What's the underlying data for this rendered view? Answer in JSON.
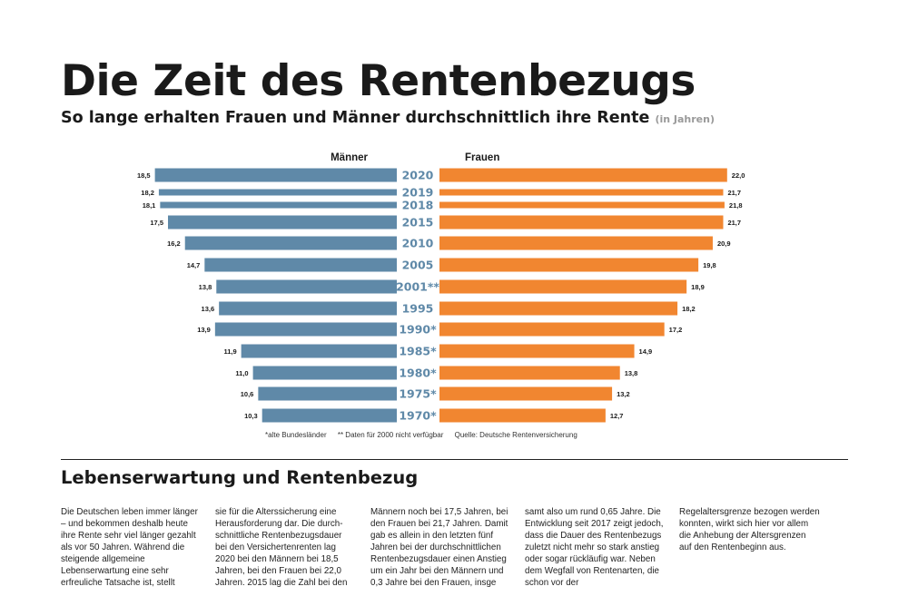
{
  "title": "Die Zeit des Rentenbezugs",
  "subtitle": "So lange erhalten Frauen und Männer durchschnittlich ihre Rente",
  "subtitle_unit": "(in Jahren)",
  "colors": {
    "men": "#5f89a8",
    "women": "#f18630",
    "year_label": "#5f89a8"
  },
  "chart_data": {
    "type": "bar",
    "orientation": "horizontal-butterfly",
    "categories": [
      "2020",
      "2019",
      "2018",
      "2015",
      "2010",
      "2005",
      "2001**",
      "1995",
      "1990*",
      "1985*",
      "1980*",
      "1975*",
      "1970*"
    ],
    "series": [
      {
        "name": "Männer",
        "values": [
          18.5,
          18.2,
          18.1,
          17.5,
          16.2,
          14.7,
          13.8,
          13.6,
          13.9,
          11.9,
          11.0,
          10.6,
          10.3
        ],
        "labels": [
          "18,5",
          "18,2",
          "18,1",
          "17,5",
          "16,2",
          "14,7",
          "13,8",
          "13,6",
          "13,9",
          "11,9",
          "11,0",
          "10,6",
          "10,3"
        ]
      },
      {
        "name": "Frauen",
        "values": [
          22.0,
          21.7,
          21.8,
          21.7,
          20.9,
          19.8,
          18.9,
          18.2,
          17.2,
          14.9,
          13.8,
          13.2,
          12.7
        ],
        "labels": [
          "22,0",
          "21,7",
          "21,8",
          "21,7",
          "20,9",
          "19,8",
          "18,9",
          "18,2",
          "17,2",
          "14,9",
          "13,8",
          "13,2",
          "12,7"
        ]
      }
    ],
    "xlim": [
      0,
      22
    ],
    "title": "Die Zeit des Rentenbezugs",
    "legend": "top-center"
  },
  "footnotes": {
    "old_states": "*alte Bundesländer",
    "no_data": "** Daten für 2000 nicht verfügbar",
    "source": "Quelle: Deutsche Rentenversicherung"
  },
  "section_title": "Lebenserwartung und Rentenbezug",
  "body_columns": [
    "Die Deutschen leben immer länger – und bekommen des­halb heute ihre Rente sehr viel länger gezahlt als vor 50 Jahren. Während die steigende allgemei­ne Lebenserwartung eine sehr erfreuliche Tatsache ist, stellt",
    "sie für die Alterssicherung eine Herausforderung dar. Die durch­schnittliche Rentenbezugsdauer bei den Versichertenrenten lag 2020 bei den Männern bei 18,5 Jahren, bei den Frauen bei 22,0 Jahren. 2015 lag die Zahl bei den",
    "Männern noch bei 17,5 Jahren, bei den Frauen bei 21,7 Jahren. Damit gab es allein in den letzten fünf Jahren bei der durchschnittlichen Rentenbezugsdauer einen Anstieg um ein Jahr bei den Männern und 0,3 Jahre bei den Frauen, insge­",
    "samt also um rund 0,65 Jahre. Die Entwicklung seit 2017 zeigt jedoch, dass die Dauer des Ren­tenbezugs zuletzt nicht mehr so stark anstieg oder sogar rückläu­fig war. Neben dem Wegfall von Rentenarten, die schon vor der",
    "Regelaltersgrenze bezogen wer­den konnten, wirkt sich hier vor allem die Anhebung der Alters­grenzen auf den Rentenbeginn aus."
  ]
}
